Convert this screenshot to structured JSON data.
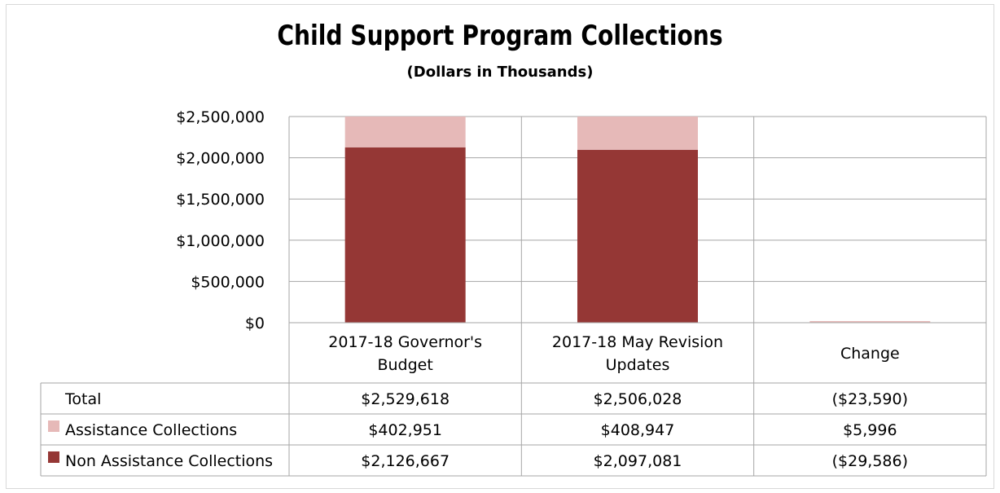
{
  "chart_data": {
    "type": "bar",
    "stacked": true,
    "title": "Child Support Program Collections",
    "subtitle": "(Dollars in Thousands)",
    "categories": [
      [
        "2017-18 Governor's",
        "Budget"
      ],
      [
        "2017-18 May Revision",
        "Updates"
      ],
      [
        "Change"
      ]
    ],
    "series": [
      {
        "name": "Non Assistance Collections",
        "color": "#953735",
        "values": [
          2126667,
          2097081,
          -29586
        ]
      },
      {
        "name": "Assistance Collections",
        "color": "#e6b9b8",
        "values": [
          402951,
          408947,
          5996
        ]
      }
    ],
    "ylim": [
      0,
      2500000
    ],
    "yticks": [
      0,
      500000,
      1000000,
      1500000,
      2000000,
      2500000
    ],
    "ytick_labels": [
      "$0",
      "$500,000",
      "$1,000,000",
      "$1,500,000",
      "$2,000,000",
      "$2,500,000"
    ],
    "grid": true,
    "data_table": {
      "rows": [
        {
          "label": "Total",
          "legend_key": false,
          "cells": [
            "$2,529,618",
            "$2,506,028",
            "($23,590)"
          ]
        },
        {
          "label": "Assistance Collections",
          "legend_key": true,
          "color": "#e6b9b8",
          "cells": [
            "$402,951",
            "$408,947",
            "$5,996"
          ]
        },
        {
          "label": "Non Assistance Collections",
          "legend_key": true,
          "color": "#953735",
          "cells": [
            "$2,126,667",
            "$2,097,081",
            "($29,586)"
          ]
        }
      ]
    }
  }
}
